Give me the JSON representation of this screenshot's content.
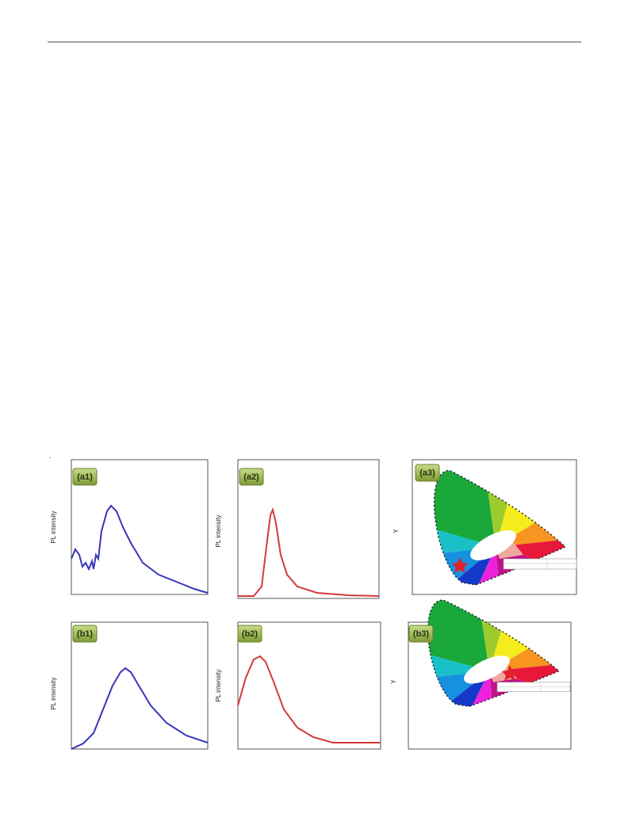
{
  "figure": {
    "mark": ".",
    "panels": [
      {
        "label": "(a1)",
        "y_label": "PL intensity"
      },
      {
        "label": "(a2)",
        "y_label": "PL intensity"
      },
      {
        "label": "(a3)",
        "y_label": "Y"
      },
      {
        "label": "(b1)",
        "y_label": "PL intensity"
      },
      {
        "label": "(b2)",
        "y_label": "PL intensity"
      },
      {
        "label": "(b3)",
        "y_label": "Y"
      }
    ]
  }
}
